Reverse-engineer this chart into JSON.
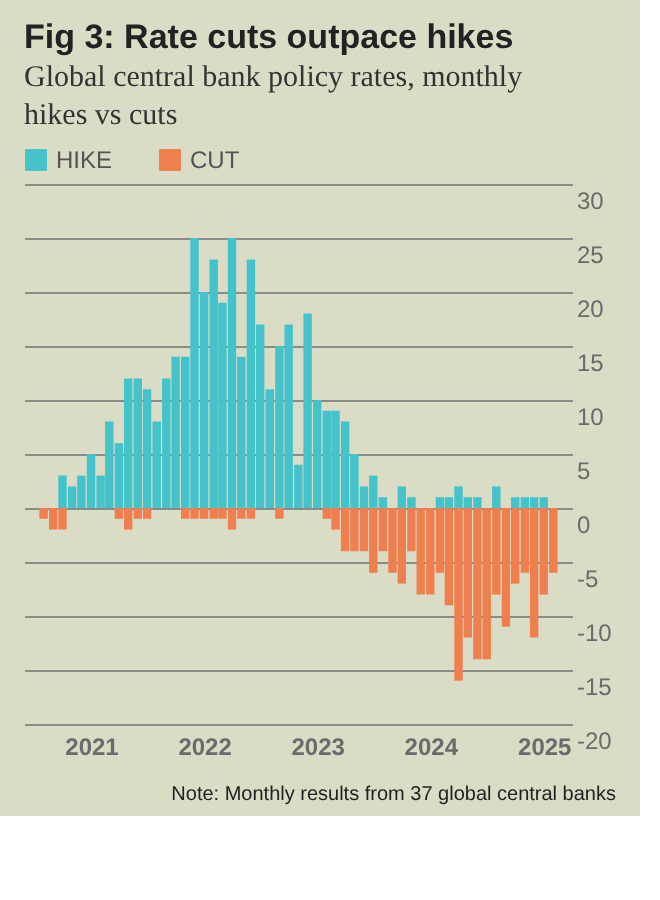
{
  "chart_data": {
    "type": "bar",
    "title": "Fig 3: Rate cuts outpace hikes",
    "subtitle": "Global central bank policy rates, monthly hikes vs cuts",
    "x": [
      "2020-08",
      "2020-09",
      "2020-10",
      "2020-11",
      "2020-12",
      "2021-01",
      "2021-02",
      "2021-03",
      "2021-04",
      "2021-05",
      "2021-06",
      "2021-07",
      "2021-08",
      "2021-09",
      "2021-10",
      "2021-11",
      "2021-12",
      "2022-01",
      "2022-02",
      "2022-03",
      "2022-04",
      "2022-05",
      "2022-06",
      "2022-07",
      "2022-08",
      "2022-09",
      "2022-10",
      "2022-11",
      "2022-12",
      "2023-01",
      "2023-02",
      "2023-03",
      "2023-04",
      "2023-05",
      "2023-06",
      "2023-07",
      "2023-08",
      "2023-09",
      "2023-10",
      "2023-11",
      "2023-12",
      "2024-01",
      "2024-02",
      "2024-03",
      "2024-04",
      "2024-05",
      "2024-06",
      "2024-07",
      "2024-08",
      "2024-09",
      "2024-10",
      "2024-11",
      "2024-12",
      "2025-01",
      "2025-02"
    ],
    "series": [
      {
        "name": "HIKE",
        "color": "#45c3cb",
        "values": [
          0,
          0,
          3,
          2,
          3,
          5,
          3,
          8,
          6,
          12,
          12,
          11,
          8,
          12,
          14,
          14,
          25,
          20,
          23,
          19,
          25,
          14,
          23,
          17,
          11,
          15,
          17,
          4,
          18,
          10,
          9,
          9,
          8,
          5,
          2,
          3,
          1,
          0,
          2,
          1,
          0,
          0,
          1,
          1,
          2,
          1,
          1,
          0,
          2,
          0,
          1,
          1,
          1,
          1,
          0
        ]
      },
      {
        "name": "CUT",
        "color": "#f07f4f",
        "values": [
          -1,
          -2,
          -2,
          0,
          0,
          0,
          0,
          0,
          -1,
          -2,
          -1,
          -1,
          0,
          0,
          0,
          -1,
          -1,
          -1,
          -1,
          -1,
          -2,
          -1,
          -1,
          0,
          0,
          -1,
          0,
          0,
          0,
          0,
          -1,
          -2,
          -4,
          -4,
          -4,
          -6,
          -4,
          -6,
          -7,
          -4,
          -8,
          -8,
          -6,
          -9,
          -16,
          -12,
          -14,
          -14,
          -8,
          -11,
          -7,
          -6,
          -12,
          -8,
          -6
        ]
      }
    ],
    "stacked": true,
    "ylim": [
      -20,
      30
    ],
    "yticks": [
      30,
      25,
      20,
      15,
      10,
      5,
      0,
      -5,
      -10,
      -15,
      -20
    ],
    "xlim": [
      "2020-07",
      "2025-03"
    ],
    "xticks": [
      "2021",
      "2022",
      "2023",
      "2024",
      "2025"
    ],
    "grid": "y",
    "legend": "top left",
    "annotations": [
      "Note: Monthly results from 37 global central banks"
    ]
  }
}
